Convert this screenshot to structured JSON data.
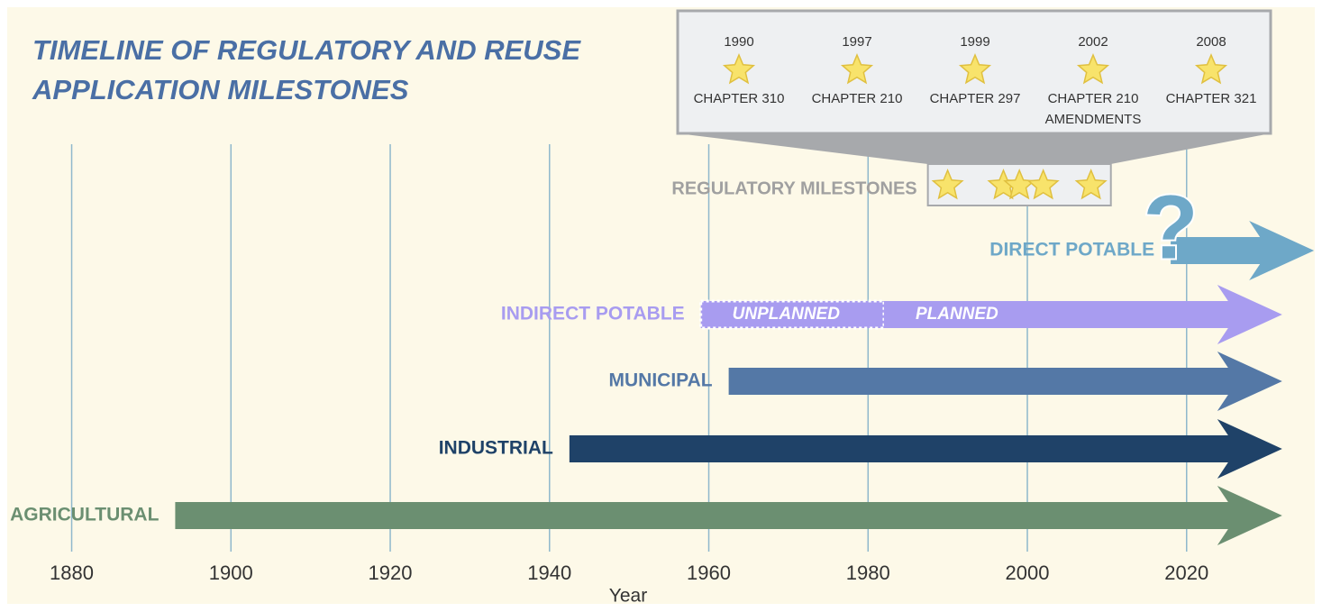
{
  "chart_data": {
    "type": "timeline",
    "title": [
      "TIMELINE OF REGULATORY AND REUSE",
      "APPLICATION MILESTONES"
    ],
    "x_label": "Year",
    "xlim": [
      1871,
      2037
    ],
    "xticks": [
      1880,
      1900,
      1920,
      1940,
      1960,
      1980,
      2000,
      2020
    ],
    "grid": true,
    "series": [
      {
        "name": "AGRICULTURAL",
        "color": "#6b8f71",
        "start": 1893,
        "end": 2032
      },
      {
        "name": "INDUSTRIAL",
        "color": "#1f4268",
        "start": 1942.5,
        "end": 2032
      },
      {
        "name": "MUNICIPAL",
        "color": "#5478a6",
        "start": 1962.5,
        "end": 2032
      },
      {
        "name": "INDIRECT POTABLE",
        "color": "#a89cf0",
        "start": 1959,
        "end": 2032,
        "segments": [
          {
            "label": "UNPLANNED",
            "start": 1959,
            "end": 1982
          },
          {
            "label": "PLANNED",
            "start": 1982,
            "end": 2032
          }
        ]
      },
      {
        "name": "DIRECT POTABLE",
        "color": "#6ea8c8",
        "start": 2018,
        "end": 2036,
        "annotation": "?"
      }
    ],
    "milestones": {
      "name": "REGULATORY MILESTONES",
      "items": [
        {
          "year": 1990,
          "label": [
            "CHAPTER 310"
          ]
        },
        {
          "year": 1997,
          "label": [
            "CHAPTER 210"
          ]
        },
        {
          "year": 1999,
          "label": [
            "CHAPTER 297"
          ]
        },
        {
          "year": 2002,
          "label": [
            "CHAPTER 210",
            "AMENDMENTS"
          ]
        },
        {
          "year": 2008,
          "label": [
            "CHAPTER 321"
          ]
        }
      ]
    }
  }
}
